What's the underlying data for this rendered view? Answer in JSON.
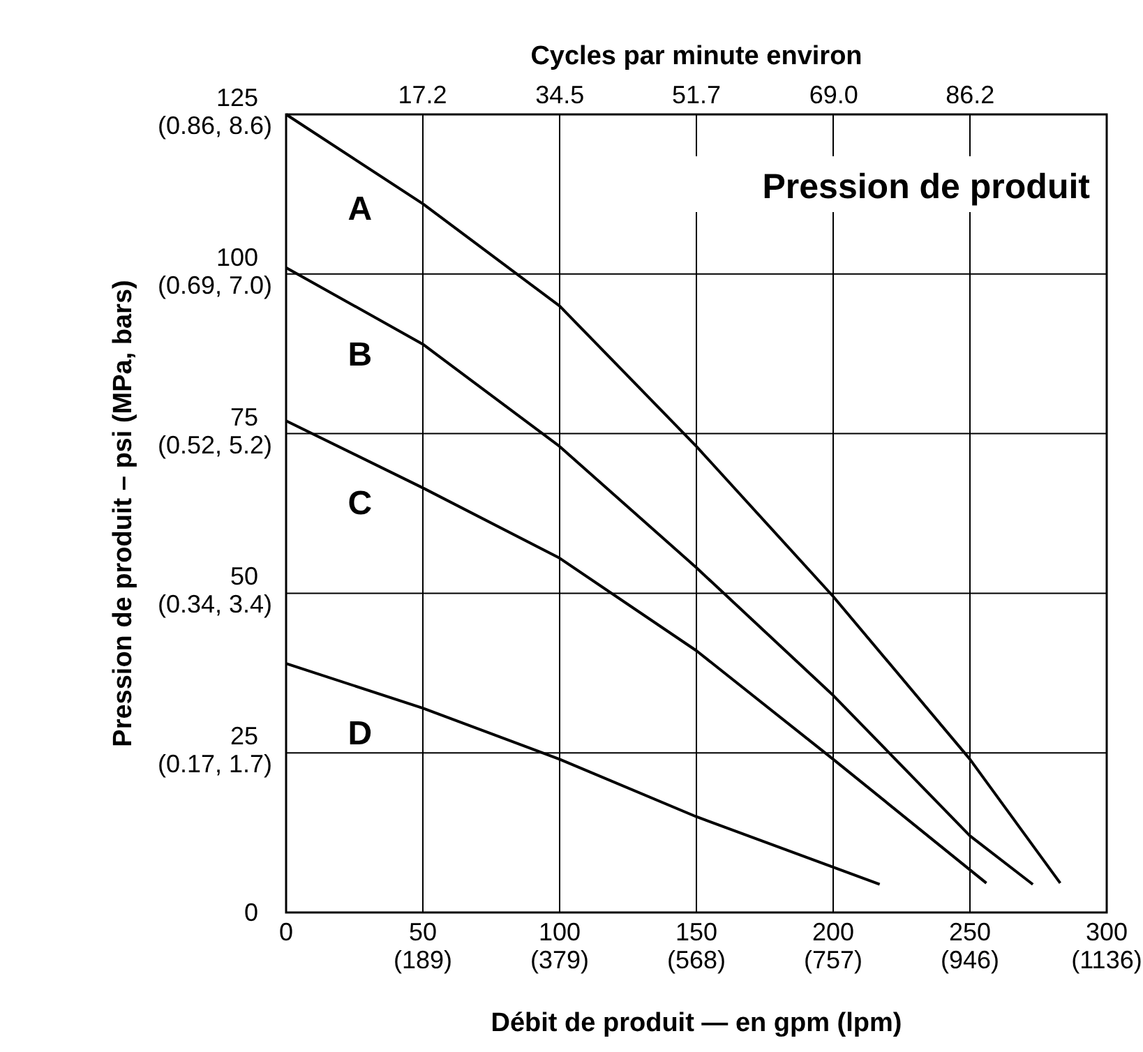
{
  "chart_data": {
    "type": "line",
    "title": "Pression de produit",
    "xlabel": "Débit de produit — en gpm (lpm)",
    "ylabel": "Pression de produit – psi (MPa, bars)",
    "x2label": "Cycles par minute environ",
    "xlim": [
      0,
      300
    ],
    "ylim": [
      0,
      125
    ],
    "xticks": [
      0,
      50,
      100,
      150,
      200,
      250,
      300
    ],
    "yticks": [
      0,
      25,
      50,
      75,
      100,
      125
    ],
    "x2lim": [
      0,
      103.4
    ],
    "x2ticks": [
      17.2,
      34.5,
      51.7,
      {
        "value": 69,
        "label": "69.0"
      },
      86.2
    ],
    "grid": true,
    "line_style": "solid",
    "series": [
      {
        "name": "A",
        "color": "#000000",
        "x": [
          0,
          50,
          100,
          150,
          200,
          250,
          283
        ],
        "values": [
          125,
          111,
          95,
          73,
          49.5,
          24,
          4.6
        ]
      },
      {
        "name": "B",
        "color": "#000000",
        "x": [
          0,
          50,
          100,
          150,
          200,
          250,
          273
        ],
        "values": [
          101,
          89,
          73,
          54,
          34,
          12,
          4.4
        ]
      },
      {
        "name": "C",
        "color": "#000000",
        "x": [
          0,
          50,
          100,
          150,
          200,
          256
        ],
        "values": [
          77,
          66.5,
          55.5,
          41,
          24,
          4.6
        ]
      },
      {
        "name": "D",
        "color": "#000000",
        "x": [
          0,
          50,
          100,
          150,
          217
        ],
        "values": [
          39,
          32,
          24,
          15,
          4.4
        ]
      }
    ],
    "annotations": [
      "(189)",
      "(379)",
      "(568)",
      "(757)",
      "(946)",
      "(1136)",
      "(0.17, 1.7)",
      "(0.34, 3.4)",
      "(0.52, 5.2)",
      "(0.69, 7.0)",
      "(0.86, 8.6)"
    ]
  }
}
